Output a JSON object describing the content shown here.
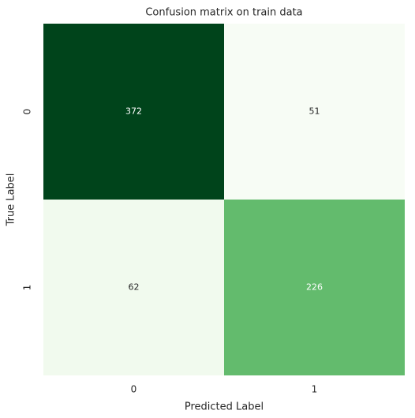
{
  "chart_data": {
    "type": "heatmap",
    "title": "Confusion matrix on train data",
    "x_label": "Predicted Label",
    "y_label": "True Label",
    "x_categories": [
      "0",
      "1"
    ],
    "y_categories": [
      "0",
      "1"
    ],
    "values": [
      [
        372,
        51
      ],
      [
        62,
        226
      ]
    ],
    "cell_colors": [
      [
        "#00441b",
        "#f7fcf5"
      ],
      [
        "#f1faee",
        "#63bb6d"
      ]
    ],
    "colorbar": false
  }
}
